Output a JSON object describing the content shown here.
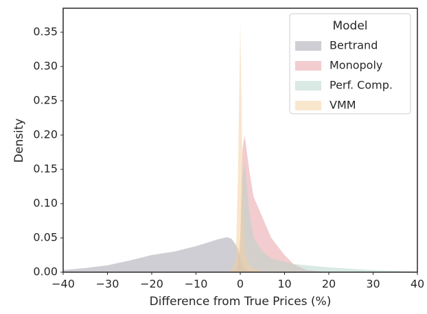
{
  "chart_data": {
    "type": "area",
    "xlabel": "Difference from True Prices (%)",
    "ylabel": "Density",
    "legend_title": "Model",
    "legend": "upper right",
    "x": [
      -40,
      -35,
      -30,
      -25,
      -20,
      -15,
      -10,
      -5,
      -3,
      -2,
      -1,
      -0.5,
      0,
      0.5,
      1,
      2,
      3,
      5,
      7,
      10,
      12,
      15,
      20,
      25,
      30,
      35,
      40
    ],
    "series": [
      {
        "name": "Bertrand",
        "color": "#9e9eaa",
        "values": [
          0.003,
          0.006,
          0.01,
          0.017,
          0.025,
          0.03,
          0.038,
          0.048,
          0.051,
          0.049,
          0.04,
          0.034,
          0.02,
          0.01,
          0.005,
          0.001,
          0,
          0,
          0,
          0,
          0,
          0,
          0,
          0,
          0,
          0,
          0
        ]
      },
      {
        "name": "Monopoly",
        "color": "#e59a9f",
        "values": [
          0,
          0,
          0,
          0,
          0,
          0,
          0,
          0,
          0,
          0,
          0,
          0.01,
          0.05,
          0.18,
          0.2,
          0.15,
          0.11,
          0.08,
          0.05,
          0.025,
          0.012,
          0.003,
          0,
          0,
          0,
          0,
          0
        ]
      },
      {
        "name": "Perf. Comp.",
        "color": "#b3d3c9",
        "values": [
          0,
          0,
          0,
          0,
          0,
          0,
          0,
          0,
          0,
          0,
          0,
          0.008,
          0.03,
          0.14,
          0.16,
          0.09,
          0.05,
          0.03,
          0.02,
          0.015,
          0.012,
          0.01,
          0.007,
          0.005,
          0.003,
          0.002,
          0.001
        ]
      },
      {
        "name": "VMM",
        "color": "#f1cd9c",
        "values": [
          0,
          0,
          0,
          0,
          0,
          0,
          0,
          0,
          0,
          0.003,
          0.02,
          0.15,
          0.365,
          0.15,
          0.03,
          0.01,
          0.005,
          0.001,
          0,
          0,
          0,
          0,
          0,
          0,
          0,
          0,
          0
        ]
      }
    ],
    "xlim": [
      -40,
      40
    ],
    "ylim": [
      0,
      0.385
    ],
    "xticks": [
      {
        "value": -40,
        "label": "−40"
      },
      {
        "value": -30,
        "label": "−30"
      },
      {
        "value": -20,
        "label": "−20"
      },
      {
        "value": -10,
        "label": "−10"
      },
      0,
      10,
      20,
      30,
      40
    ],
    "yticks": [
      {
        "value": 0,
        "label": "0.00"
      },
      {
        "value": 0.05,
        "label": "0.05"
      },
      {
        "value": 0.1,
        "label": "0.10"
      },
      {
        "value": 0.15,
        "label": "0.15"
      },
      {
        "value": 0.2,
        "label": "0.20"
      },
      {
        "value": 0.25,
        "label": "0.25"
      },
      {
        "value": 0.3,
        "label": "0.30"
      },
      {
        "value": 0.35,
        "label": "0.35"
      }
    ],
    "grid": false
  }
}
